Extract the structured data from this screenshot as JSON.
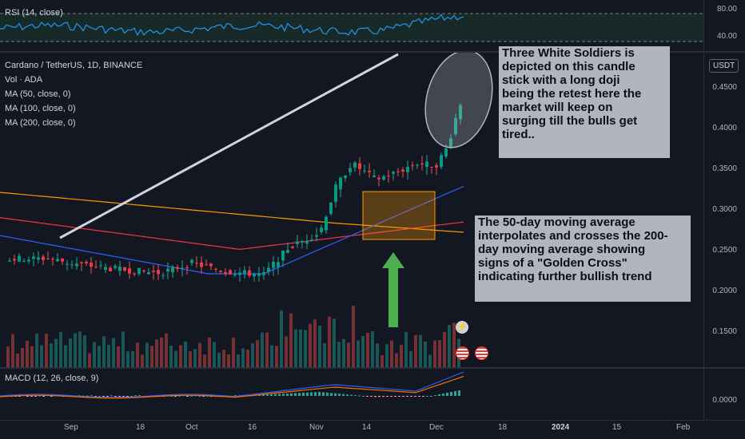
{
  "rsi": {
    "label": "RSI (14, close)",
    "ticks": [
      "80.00",
      "40.00"
    ]
  },
  "main": {
    "symbol_line": "Cardano / TetherUS, 1D, BINANCE",
    "indicators": [
      "Vol · ADA",
      "MA (50, close, 0)",
      "MA (100, close, 0)",
      "MA (200, close, 0)"
    ],
    "currency_badge": "USDT",
    "price_ticks": [
      "0.4500",
      "0.4000",
      "0.3500",
      "0.3000",
      "0.2500",
      "0.2000",
      "0.1500"
    ]
  },
  "annotations": {
    "soldiers": [
      "Three White Soldiers is",
      "depicted on this candle",
      "stick with a long doji",
      "being the retest here the",
      "market will keep on",
      "surging till the bulls get",
      "tired.."
    ],
    "golden_cross": [
      "The 50-day moving average",
      "interpolates and crosses the 200-",
      "day moving average showing",
      "signs of a \"Golden Cross\"",
      "indicating further bullish trend"
    ]
  },
  "macd": {
    "label": "MACD (12, 26, close, 9)",
    "tick": "0.0000"
  },
  "time_axis": [
    "Sep",
    "18",
    "Oct",
    "16",
    "Nov",
    "14",
    "Dec",
    "18",
    "2024",
    "15",
    "Feb"
  ],
  "colors": {
    "up": "#26a69a",
    "down": "#ef5350",
    "ma50": "#2962ff",
    "ma100": "#f23645",
    "ma200": "#ff9800",
    "rsi": "#7e57c2"
  },
  "icons": {
    "flash": "lightning-icon",
    "flag1": "us-flag-icon",
    "flag2": "us-flag-icon"
  }
}
